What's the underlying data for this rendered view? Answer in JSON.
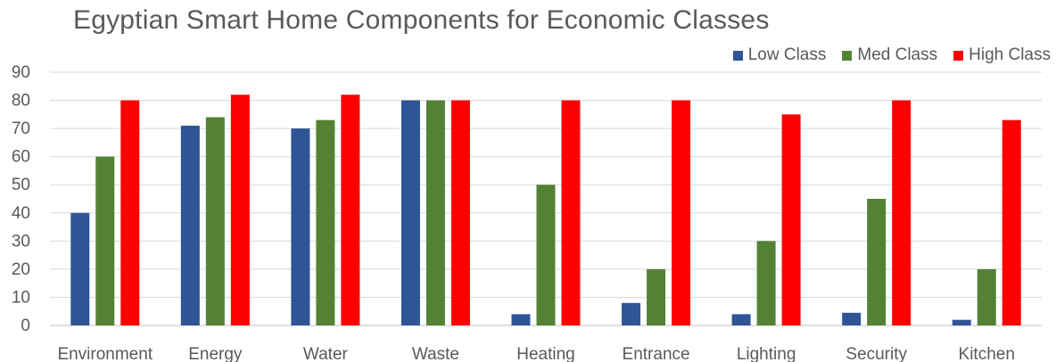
{
  "chart_data": {
    "type": "bar",
    "title": "Egyptian Smart Home Components for Economic Classes",
    "xlabel": "",
    "ylabel": "",
    "categories": [
      "Environment",
      "Energy",
      "Water",
      "Waste",
      "Heating",
      "Entrance",
      "Lighting",
      "Security",
      "Kitchen"
    ],
    "series": [
      {
        "name": "Low Class",
        "color": "#2F5597",
        "values": [
          40,
          71,
          70,
          80,
          4,
          8,
          4,
          4.5,
          2
        ]
      },
      {
        "name": "Med Class",
        "color": "#548235",
        "values": [
          60,
          74,
          73,
          80,
          50,
          20,
          30,
          45,
          20
        ]
      },
      {
        "name": "High Class",
        "color": "#FF0000",
        "values": [
          80,
          82,
          82,
          80,
          80,
          80,
          75,
          80,
          73
        ]
      }
    ],
    "ylim": [
      0,
      90
    ],
    "yticks": [
      0,
      10,
      20,
      30,
      40,
      50,
      60,
      70,
      80,
      90
    ],
    "grid": true,
    "legend_position": "top-right"
  },
  "colors": {
    "grid": "#D9D9D9",
    "axis_text": "#595959",
    "title_text": "#595959"
  }
}
